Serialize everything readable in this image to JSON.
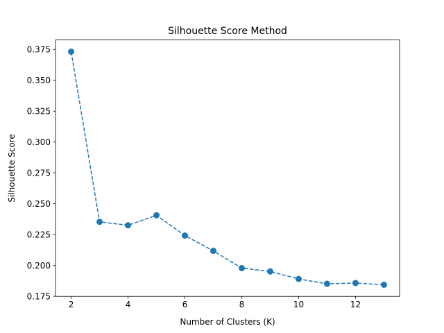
{
  "chart_data": {
    "type": "line",
    "title": "Silhouette Score Method",
    "xlabel": "Number of Clusters (K)",
    "ylabel": "Silhouette Score",
    "x": [
      2,
      3,
      4,
      5,
      6,
      7,
      8,
      9,
      10,
      11,
      12,
      13
    ],
    "series": [
      {
        "values": [
          0.3732,
          0.2353,
          0.2325,
          0.2406,
          0.2242,
          0.2118,
          0.1978,
          0.1951,
          0.189,
          0.1851,
          0.1857,
          0.1843
        ],
        "color": "#1f77b4",
        "line_style": "dashed",
        "marker": "circle"
      }
    ],
    "xlim": [
      1.45,
      13.55
    ],
    "ylim": [
      0.1749,
      0.3827
    ],
    "xticks": [
      2,
      4,
      6,
      8,
      10,
      12
    ],
    "yticks": [
      0.175,
      0.2,
      0.225,
      0.25,
      0.275,
      0.3,
      0.325,
      0.35,
      0.375
    ],
    "ytick_labels": [
      "0.175",
      "0.200",
      "0.225",
      "0.250",
      "0.275",
      "0.300",
      "0.325",
      "0.350",
      "0.375"
    ],
    "grid": false,
    "legend": false
  }
}
